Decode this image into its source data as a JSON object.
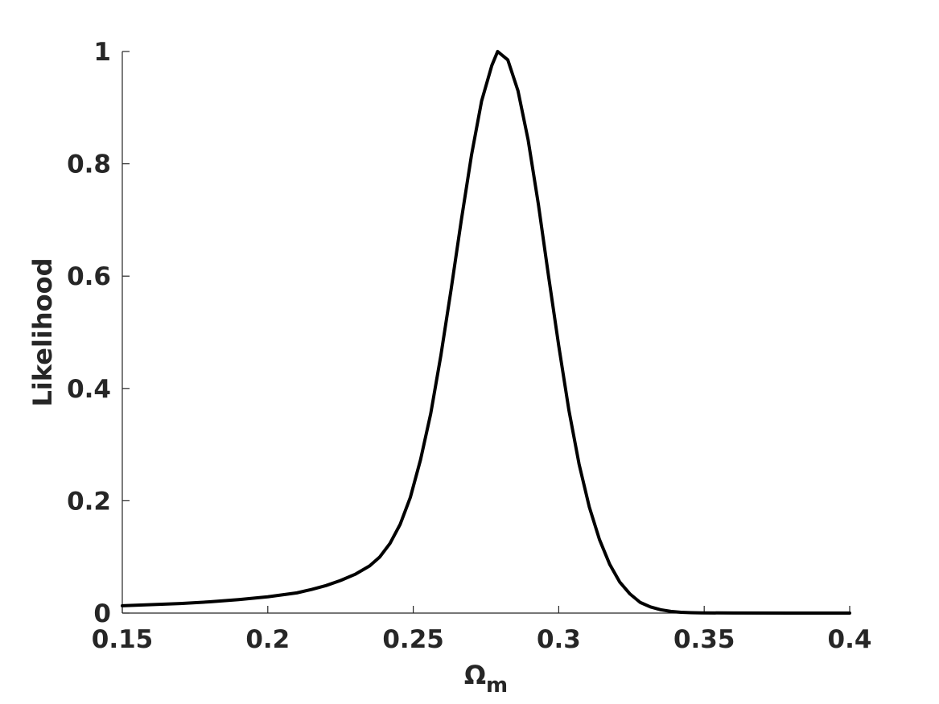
{
  "chart_data": {
    "type": "line",
    "title": "",
    "xlabel_main": "Ω",
    "xlabel_sub": "m",
    "ylabel": "Likelihood",
    "xlim": [
      0.15,
      0.4
    ],
    "ylim": [
      0,
      1
    ],
    "grid": false,
    "xticks": [
      0.15,
      0.2,
      0.25,
      0.3,
      0.35,
      0.4
    ],
    "xtick_labels": [
      "0.15",
      "0.2",
      "0.25",
      "0.3",
      "0.35",
      "0.4"
    ],
    "yticks": [
      0,
      0.2,
      0.4,
      0.6,
      0.8,
      1
    ],
    "ytick_labels": [
      "0",
      "0.2",
      "0.4",
      "0.6",
      "0.8",
      "1"
    ],
    "series": [
      {
        "color": "#000000",
        "x": [
          0.15,
          0.16,
          0.17,
          0.18,
          0.19,
          0.2,
          0.21,
          0.215,
          0.22,
          0.225,
          0.23,
          0.235,
          0.2385,
          0.242,
          0.2455,
          0.249,
          0.2525,
          0.256,
          0.2595,
          0.263,
          0.2665,
          0.27,
          0.2735,
          0.277,
          0.279,
          0.2825,
          0.286,
          0.2895,
          0.293,
          0.2965,
          0.3,
          0.3035,
          0.307,
          0.3105,
          0.314,
          0.3175,
          0.321,
          0.3245,
          0.328,
          0.3315,
          0.335,
          0.3385,
          0.342,
          0.3455,
          0.349,
          0.36,
          0.38,
          0.4
        ],
        "y": [
          0.013,
          0.015,
          0.017,
          0.02,
          0.024,
          0.029,
          0.036,
          0.042,
          0.049,
          0.058,
          0.069,
          0.084,
          0.1,
          0.124,
          0.158,
          0.206,
          0.273,
          0.355,
          0.459,
          0.576,
          0.699,
          0.815,
          0.912,
          0.975,
          1.0,
          0.985,
          0.93,
          0.842,
          0.728,
          0.6,
          0.476,
          0.361,
          0.265,
          0.189,
          0.131,
          0.087,
          0.055,
          0.034,
          0.019,
          0.011,
          0.006,
          0.003,
          0.0015,
          0.0008,
          0.0004,
          0.0001,
          0.0,
          0.0
        ]
      }
    ]
  }
}
